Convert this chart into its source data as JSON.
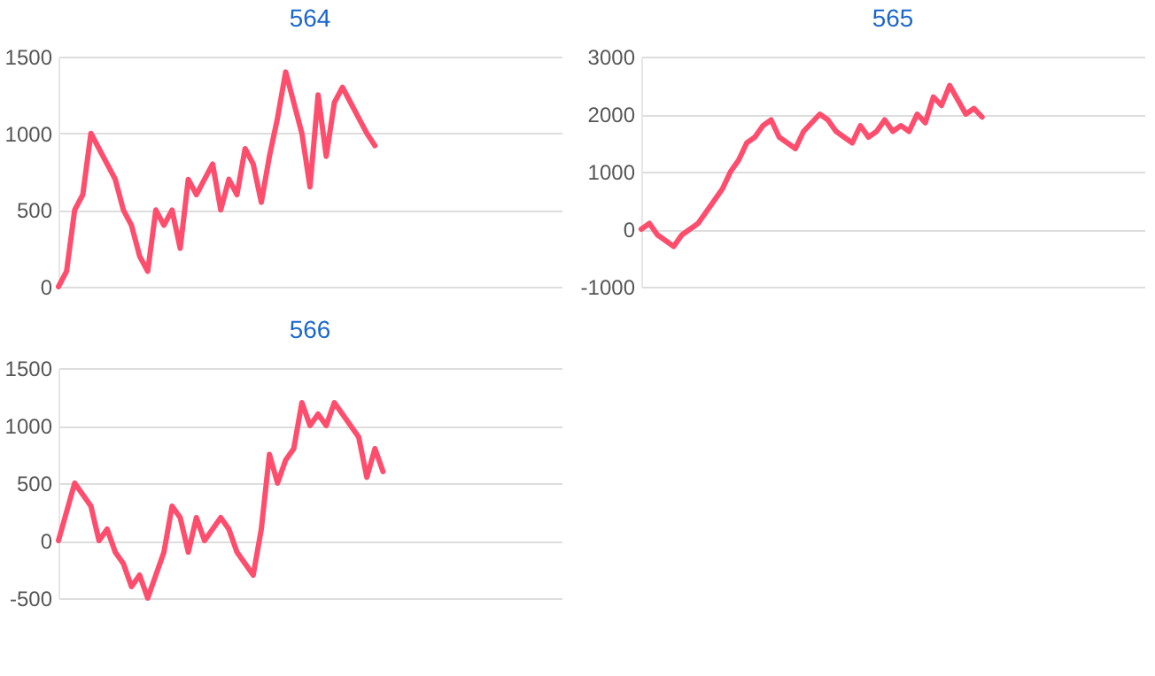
{
  "chart_data": [
    {
      "type": "line",
      "title": "564",
      "categories": [
        null,
        null,
        null,
        null,
        null,
        null,
        null,
        null,
        null,
        null,
        null,
        null,
        null,
        null,
        null,
        null,
        null,
        null,
        null,
        null,
        null,
        null,
        null,
        null,
        null,
        null,
        null,
        null,
        null,
        null,
        null,
        null,
        null,
        null,
        null,
        null,
        null,
        null,
        null,
        null,
        null,
        null,
        null,
        null,
        null,
        null,
        null,
        null,
        null,
        null,
        null,
        null,
        null,
        null,
        null,
        null,
        null,
        null,
        null,
        null,
        null,
        null,
        null
      ],
      "series": [
        {
          "color": "#ff4d6d",
          "values": [
            0,
            100,
            500,
            600,
            1000,
            900,
            800,
            700,
            500,
            400,
            200,
            100,
            500,
            400,
            500,
            250,
            700,
            600,
            700,
            800,
            500,
            700,
            600,
            900,
            800,
            550,
            850,
            1100,
            1400,
            1200,
            1000,
            650,
            1250,
            850,
            1200,
            1300,
            1200,
            1100,
            1000,
            920,
            null,
            null,
            null,
            null,
            null,
            null,
            null,
            null,
            null,
            null,
            null,
            null,
            null,
            null,
            null,
            null,
            null,
            null,
            null,
            null,
            null,
            null,
            null
          ]
        }
      ],
      "ylim": [
        0,
        1500
      ],
      "yticks": [
        0,
        500,
        1000,
        1500
      ],
      "grid": "y",
      "tick_labels": "y"
    },
    {
      "type": "line",
      "title": "565",
      "categories": [
        null,
        null,
        null,
        null,
        null,
        null,
        null,
        null,
        null,
        null,
        null,
        null,
        null,
        null,
        null,
        null,
        null,
        null,
        null,
        null,
        null,
        null,
        null,
        null,
        null,
        null,
        null,
        null,
        null,
        null,
        null,
        null,
        null,
        null,
        null,
        null,
        null,
        null,
        null,
        null,
        null,
        null,
        null,
        null,
        null,
        null,
        null,
        null,
        null,
        null,
        null,
        null,
        null,
        null,
        null,
        null,
        null,
        null,
        null,
        null,
        null,
        null,
        null
      ],
      "series": [
        {
          "color": "#ff4d6d",
          "values": [
            0,
            100,
            -100,
            -200,
            -300,
            -100,
            0,
            100,
            300,
            500,
            700,
            1000,
            1200,
            1500,
            1600,
            1800,
            1900,
            1600,
            1500,
            1400,
            1700,
            1850,
            2000,
            1900,
            1700,
            1600,
            1500,
            1800,
            1600,
            1700,
            1900,
            1700,
            1800,
            1700,
            2000,
            1850,
            2300,
            2150,
            2500,
            2250,
            2000,
            2100,
            1950,
            null,
            null,
            null,
            null,
            null,
            null,
            null,
            null,
            null,
            null,
            null,
            null,
            null,
            null,
            null,
            null,
            null,
            null,
            null,
            null
          ]
        }
      ],
      "ylim": [
        -1000,
        3000
      ],
      "yticks": [
        -1000,
        0,
        1000,
        2000,
        3000
      ],
      "grid": "y",
      "tick_labels": "y"
    },
    {
      "type": "line",
      "title": "566",
      "categories": [
        null,
        null,
        null,
        null,
        null,
        null,
        null,
        null,
        null,
        null,
        null,
        null,
        null,
        null,
        null,
        null,
        null,
        null,
        null,
        null,
        null,
        null,
        null,
        null,
        null,
        null,
        null,
        null,
        null,
        null,
        null,
        null,
        null,
        null,
        null,
        null,
        null,
        null,
        null,
        null,
        null,
        null,
        null,
        null,
        null,
        null,
        null,
        null,
        null,
        null,
        null,
        null,
        null,
        null,
        null,
        null,
        null,
        null,
        null,
        null,
        null,
        null,
        null
      ],
      "series": [
        {
          "color": "#ff4d6d",
          "values": [
            0,
            250,
            500,
            400,
            300,
            0,
            100,
            -100,
            -200,
            -400,
            -300,
            -500,
            -300,
            -100,
            300,
            200,
            -100,
            200,
            0,
            100,
            200,
            100,
            -100,
            -200,
            -300,
            100,
            750,
            500,
            700,
            800,
            1200,
            1000,
            1100,
            1000,
            1200,
            1100,
            1000,
            900,
            550,
            800,
            600,
            null,
            null,
            null,
            null,
            null,
            null,
            null,
            null,
            null,
            null,
            null,
            null,
            null,
            null,
            null,
            null,
            null,
            null,
            null,
            null,
            null,
            null
          ]
        }
      ],
      "ylim": [
        -500,
        1500
      ],
      "yticks": [
        -500,
        0,
        500,
        1000,
        1500
      ],
      "grid": "y",
      "tick_labels": "y"
    }
  ]
}
